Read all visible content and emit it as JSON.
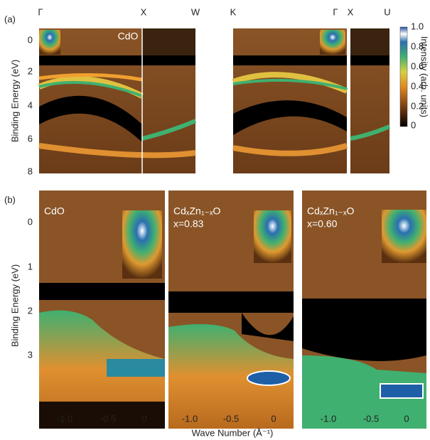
{
  "panel_a": {
    "label": "(a)",
    "y_label": "Binding Energy (eV)",
    "y_ticks": [
      "0",
      "2",
      "4",
      "6",
      "8"
    ],
    "k_points": [
      "Γ",
      "X",
      "W",
      "K",
      "Γ",
      "X",
      "U"
    ],
    "sample": "CdO",
    "colorbar_ticks": [
      "1.0",
      "0.8",
      "0.6",
      "0.4",
      "0.2",
      "0"
    ],
    "colorbar_label": "Intensity (arb. units)"
  },
  "panel_b": {
    "label": "(b)",
    "y_label": "Binding Energy (eV)",
    "y_ticks": [
      "0",
      "1",
      "2",
      "3"
    ],
    "x_label": "Wave Number (Å⁻¹)",
    "panels": [
      {
        "sample": "CdO",
        "x_ticks": [
          "-1.0",
          "-0.5",
          "0"
        ]
      },
      {
        "sample": "CdₓZn₁₋ₓO",
        "composition": "x=0.83",
        "x_ticks": [
          "-1.0",
          "-0.5",
          "0"
        ]
      },
      {
        "sample": "CdₓZn₁₋ₓO",
        "composition": "x=0.60",
        "x_ticks": [
          "-1.0",
          "-0.5",
          "0"
        ]
      }
    ]
  }
}
